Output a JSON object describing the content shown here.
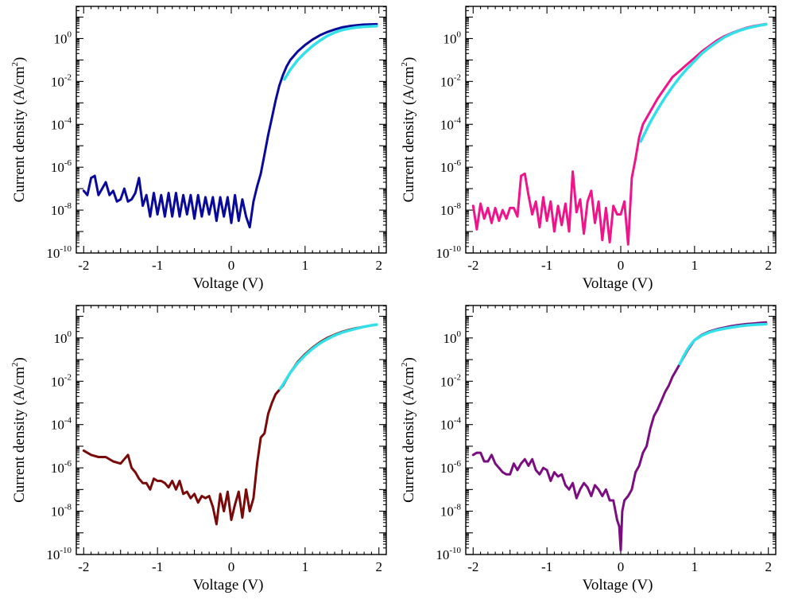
{
  "chart_data": [
    {
      "type": "line",
      "xlabel": "Voltage (V)",
      "ylabel_base": "Current density (A/cm",
      "ylabel_sup": "2",
      "ylabel_close": ")",
      "xlim": [
        -2.1,
        2.1
      ],
      "ylim_log10": [
        -10,
        1.5
      ],
      "y_scale": "log",
      "x_ticks": [
        -2,
        -1,
        0,
        1,
        2
      ],
      "y_tick_exponents": [
        0,
        -2,
        -4,
        -6,
        -8,
        -10
      ],
      "y_tick_base": "10",
      "grid": false,
      "series": [
        {
          "color": "#0a0a9a",
          "x": [
            -2.0,
            -1.95,
            -1.9,
            -1.85,
            -1.8,
            -1.75,
            -1.7,
            -1.65,
            -1.6,
            -1.55,
            -1.5,
            -1.45,
            -1.4,
            -1.35,
            -1.3,
            -1.25,
            -1.2,
            -1.15,
            -1.1,
            -1.05,
            -1.0,
            -0.95,
            -0.9,
            -0.85,
            -0.8,
            -0.75,
            -0.7,
            -0.65,
            -0.6,
            -0.55,
            -0.5,
            -0.45,
            -0.4,
            -0.35,
            -0.3,
            -0.25,
            -0.2,
            -0.15,
            -0.1,
            -0.05,
            0.0,
            0.05,
            0.1,
            0.15,
            0.2,
            0.25,
            0.3,
            0.35,
            0.4,
            0.45,
            0.5,
            0.55,
            0.6,
            0.65,
            0.7,
            0.75,
            0.8,
            0.9,
            1.0,
            1.1,
            1.2,
            1.3,
            1.4,
            1.5,
            1.6,
            1.7,
            1.8,
            1.9,
            1.97
          ],
          "log10_y": [
            -7.1,
            -7.3,
            -6.5,
            -6.4,
            -7.3,
            -7.0,
            -6.7,
            -7.3,
            -7.1,
            -7.6,
            -7.5,
            -7.0,
            -7.6,
            -7.5,
            -7.2,
            -6.5,
            -7.8,
            -7.3,
            -8.3,
            -7.2,
            -8.2,
            -7.3,
            -8.3,
            -7.2,
            -8.3,
            -7.2,
            -8.3,
            -7.3,
            -8.2,
            -7.3,
            -8.4,
            -7.3,
            -8.3,
            -7.4,
            -8.2,
            -7.4,
            -8.5,
            -7.4,
            -8.3,
            -7.4,
            -8.6,
            -7.3,
            -8.5,
            -7.5,
            -8.3,
            -8.8,
            -7.6,
            -6.9,
            -6.3,
            -5.4,
            -4.5,
            -3.7,
            -2.9,
            -2.2,
            -1.7,
            -1.3,
            -1.0,
            -0.6,
            -0.3,
            -0.05,
            0.15,
            0.3,
            0.42,
            0.52,
            0.58,
            0.62,
            0.65,
            0.66,
            0.67
          ]
        }
      ],
      "fit": {
        "color": "#33e0ea",
        "x": [
          0.72,
          0.8,
          0.9,
          1.0,
          1.1,
          1.2,
          1.3,
          1.4,
          1.5,
          1.6,
          1.7,
          1.8,
          1.9,
          1.97
        ],
        "log10_y": [
          -1.9,
          -1.45,
          -1.0,
          -0.65,
          -0.35,
          -0.1,
          0.12,
          0.28,
          0.4,
          0.47,
          0.52,
          0.55,
          0.57,
          0.58
        ]
      }
    },
    {
      "type": "line",
      "xlabel": "Voltage (V)",
      "ylabel_base": "Current density (A/cm",
      "ylabel_sup": "2",
      "ylabel_close": ")",
      "xlim": [
        -2.1,
        2.1
      ],
      "ylim_log10": [
        -10,
        1.5
      ],
      "y_scale": "log",
      "x_ticks": [
        -2,
        -1,
        0,
        1,
        2
      ],
      "y_tick_exponents": [
        0,
        -2,
        -4,
        -6,
        -8,
        -10
      ],
      "y_tick_base": "10",
      "grid": false,
      "series": [
        {
          "color": "#f0148a",
          "x": [
            -2.0,
            -1.95,
            -1.9,
            -1.85,
            -1.8,
            -1.75,
            -1.7,
            -1.65,
            -1.6,
            -1.55,
            -1.5,
            -1.45,
            -1.4,
            -1.35,
            -1.3,
            -1.25,
            -1.2,
            -1.15,
            -1.1,
            -1.05,
            -1.0,
            -0.95,
            -0.9,
            -0.85,
            -0.8,
            -0.75,
            -0.7,
            -0.65,
            -0.6,
            -0.55,
            -0.5,
            -0.45,
            -0.4,
            -0.35,
            -0.3,
            -0.25,
            -0.2,
            -0.15,
            -0.1,
            -0.05,
            0.0,
            0.05,
            0.1,
            0.15,
            0.2,
            0.25,
            0.3,
            0.4,
            0.5,
            0.6,
            0.7,
            0.8,
            0.9,
            1.0,
            1.1,
            1.2,
            1.3,
            1.4,
            1.5,
            1.6,
            1.7,
            1.8,
            1.9,
            1.97
          ],
          "log10_y": [
            -7.8,
            -8.9,
            -7.7,
            -8.4,
            -7.9,
            -8.6,
            -7.9,
            -8.5,
            -8.0,
            -8.4,
            -7.9,
            -7.9,
            -8.3,
            -6.4,
            -6.3,
            -7.3,
            -8.2,
            -7.6,
            -8.8,
            -7.4,
            -8.5,
            -7.6,
            -9.0,
            -7.8,
            -8.7,
            -7.7,
            -9.0,
            -6.2,
            -8.1,
            -7.5,
            -9.1,
            -7.6,
            -7.1,
            -8.6,
            -7.6,
            -9.4,
            -7.9,
            -9.5,
            -7.8,
            -8.2,
            -8.2,
            -7.6,
            -9.6,
            -6.5,
            -5.6,
            -4.6,
            -4.0,
            -3.4,
            -2.8,
            -2.3,
            -1.8,
            -1.5,
            -1.2,
            -0.9,
            -0.6,
            -0.35,
            -0.1,
            0.1,
            0.25,
            0.38,
            0.5,
            0.58,
            0.64,
            0.68
          ]
        }
      ],
      "fit": {
        "color": "#33e0ea",
        "x": [
          0.27,
          0.4,
          0.5,
          0.6,
          0.7,
          0.8,
          0.9,
          1.0,
          1.1,
          1.2,
          1.3,
          1.4,
          1.5,
          1.6,
          1.7,
          1.8,
          1.9,
          1.97
        ],
        "log10_y": [
          -4.8,
          -3.9,
          -3.3,
          -2.75,
          -2.25,
          -1.8,
          -1.4,
          -1.05,
          -0.7,
          -0.42,
          -0.18,
          0.05,
          0.22,
          0.36,
          0.47,
          0.55,
          0.62,
          0.66
        ]
      }
    },
    {
      "type": "line",
      "xlabel": "Voltage (V)",
      "ylabel_base": "Current density (A/cm",
      "ylabel_sup": "2",
      "ylabel_close": ")",
      "xlim": [
        -2.1,
        2.1
      ],
      "ylim_log10": [
        -10,
        1.5
      ],
      "y_scale": "log",
      "x_ticks": [
        -2,
        -1,
        0,
        1,
        2
      ],
      "y_tick_exponents": [
        0,
        -2,
        -4,
        -6,
        -8,
        -10
      ],
      "y_tick_base": "10",
      "grid": false,
      "series": [
        {
          "color": "#7a0a0a",
          "x": [
            -2.0,
            -1.9,
            -1.8,
            -1.7,
            -1.6,
            -1.5,
            -1.45,
            -1.4,
            -1.35,
            -1.3,
            -1.25,
            -1.2,
            -1.15,
            -1.1,
            -1.05,
            -1.0,
            -0.95,
            -0.9,
            -0.85,
            -0.8,
            -0.75,
            -0.7,
            -0.65,
            -0.6,
            -0.55,
            -0.5,
            -0.45,
            -0.4,
            -0.35,
            -0.3,
            -0.25,
            -0.2,
            -0.15,
            -0.1,
            -0.05,
            0.0,
            0.05,
            0.1,
            0.15,
            0.2,
            0.25,
            0.3,
            0.35,
            0.4,
            0.45,
            0.5,
            0.55,
            0.6,
            0.65,
            0.7,
            0.8,
            0.9,
            1.0,
            1.1,
            1.2,
            1.3,
            1.4,
            1.5,
            1.6,
            1.7,
            1.8,
            1.9,
            1.97
          ],
          "log10_y": [
            -5.2,
            -5.4,
            -5.5,
            -5.5,
            -5.7,
            -5.8,
            -5.6,
            -5.4,
            -6.0,
            -6.2,
            -6.5,
            -6.7,
            -6.7,
            -7.0,
            -6.5,
            -6.6,
            -6.6,
            -6.7,
            -6.9,
            -6.6,
            -7.0,
            -6.6,
            -7.2,
            -7.1,
            -7.4,
            -7.2,
            -7.6,
            -7.3,
            -7.4,
            -7.3,
            -7.8,
            -8.6,
            -7.2,
            -8.0,
            -7.1,
            -8.4,
            -7.7,
            -7.1,
            -8.3,
            -7.0,
            -8.0,
            -7.4,
            -5.8,
            -4.6,
            -4.4,
            -3.5,
            -3.0,
            -2.6,
            -2.4,
            -2.2,
            -1.6,
            -1.1,
            -0.75,
            -0.45,
            -0.2,
            0.0,
            0.15,
            0.28,
            0.38,
            0.46,
            0.52,
            0.58,
            0.62
          ]
        }
      ],
      "fit": {
        "color": "#33e0ea",
        "x": [
          0.66,
          0.7,
          0.8,
          0.9,
          1.0,
          1.1,
          1.2,
          1.3,
          1.4,
          1.5,
          1.6,
          1.7,
          1.8,
          1.9,
          1.97
        ],
        "log10_y": [
          -2.35,
          -2.15,
          -1.6,
          -1.15,
          -0.8,
          -0.5,
          -0.25,
          -0.05,
          0.12,
          0.25,
          0.35,
          0.44,
          0.52,
          0.58,
          0.62
        ]
      }
    },
    {
      "type": "line",
      "xlabel": "Voltage (V)",
      "ylabel_base": "Current density (A/cm",
      "ylabel_sup": "2",
      "ylabel_close": ")",
      "xlim": [
        -2.1,
        2.1
      ],
      "ylim_log10": [
        -10,
        1.5
      ],
      "y_scale": "log",
      "x_ticks": [
        -2,
        -1,
        0,
        1,
        2
      ],
      "y_tick_exponents": [
        0,
        -2,
        -4,
        -6,
        -8,
        -10
      ],
      "y_tick_base": "10",
      "grid": false,
      "series": [
        {
          "color": "#7a0e80",
          "x": [
            -2.0,
            -1.95,
            -1.9,
            -1.85,
            -1.8,
            -1.75,
            -1.7,
            -1.65,
            -1.6,
            -1.55,
            -1.5,
            -1.45,
            -1.4,
            -1.35,
            -1.3,
            -1.25,
            -1.2,
            -1.15,
            -1.1,
            -1.05,
            -1.0,
            -0.95,
            -0.9,
            -0.85,
            -0.8,
            -0.75,
            -0.7,
            -0.65,
            -0.6,
            -0.55,
            -0.5,
            -0.45,
            -0.4,
            -0.35,
            -0.3,
            -0.25,
            -0.2,
            -0.15,
            -0.1,
            -0.05,
            -0.02,
            0.0,
            0.02,
            0.05,
            0.1,
            0.15,
            0.2,
            0.25,
            0.3,
            0.35,
            0.4,
            0.45,
            0.5,
            0.55,
            0.6,
            0.65,
            0.7,
            0.75,
            0.8,
            0.9,
            1.0,
            1.1,
            1.2,
            1.3,
            1.4,
            1.5,
            1.6,
            1.7,
            1.8,
            1.9,
            1.97
          ],
          "log10_y": [
            -5.4,
            -5.3,
            -5.3,
            -5.7,
            -5.7,
            -5.4,
            -5.8,
            -6.0,
            -6.2,
            -6.3,
            -6.3,
            -5.8,
            -6.1,
            -5.8,
            -5.6,
            -5.9,
            -5.6,
            -6.1,
            -6.3,
            -6.0,
            -6.1,
            -6.6,
            -6.2,
            -6.4,
            -6.3,
            -6.8,
            -7.0,
            -6.7,
            -7.4,
            -7.0,
            -6.7,
            -6.9,
            -7.3,
            -6.8,
            -7.0,
            -7.3,
            -7.0,
            -7.5,
            -7.5,
            -8.4,
            -8.7,
            -9.8,
            -8.0,
            -7.5,
            -7.3,
            -7.0,
            -6.2,
            -5.9,
            -5.3,
            -5.0,
            -4.2,
            -3.6,
            -3.3,
            -2.9,
            -2.5,
            -2.2,
            -1.8,
            -1.5,
            -1.2,
            -0.6,
            -0.1,
            0.15,
            0.3,
            0.4,
            0.48,
            0.55,
            0.6,
            0.64,
            0.67,
            0.7,
            0.72
          ]
        }
      ],
      "fit": {
        "color": "#33e0ea",
        "x": [
          0.8,
          0.85,
          0.9,
          0.95,
          1.0,
          1.1,
          1.2,
          1.3,
          1.4,
          1.5,
          1.6,
          1.7,
          1.8,
          1.9,
          1.97
        ],
        "log10_y": [
          -1.2,
          -0.85,
          -0.55,
          -0.3,
          -0.1,
          0.12,
          0.26,
          0.36,
          0.43,
          0.49,
          0.54,
          0.58,
          0.61,
          0.63,
          0.64
        ]
      }
    }
  ]
}
